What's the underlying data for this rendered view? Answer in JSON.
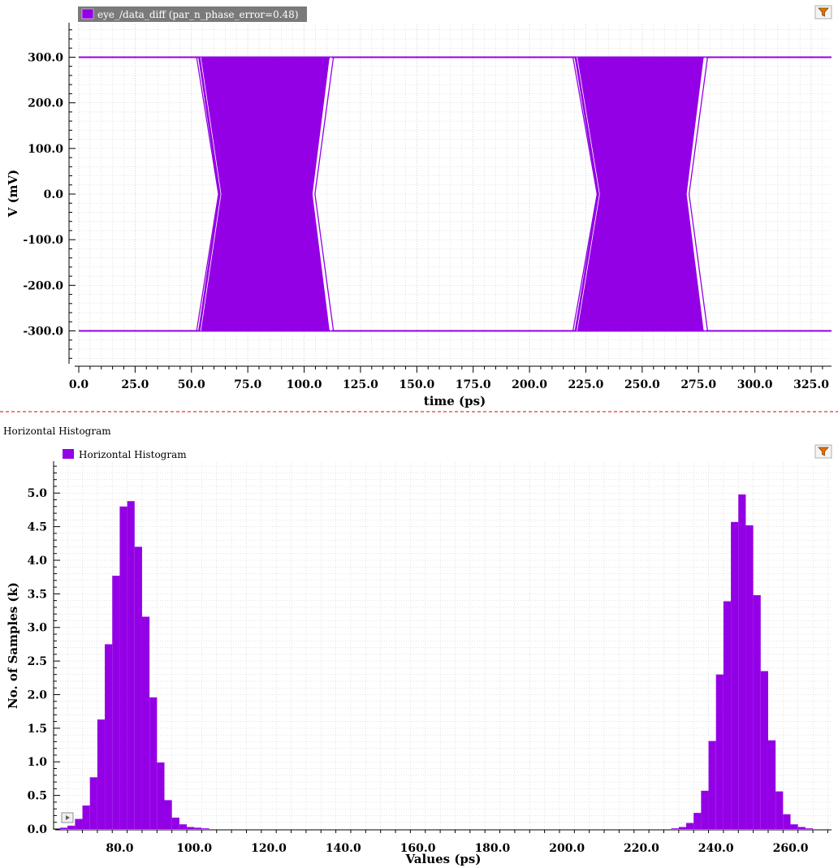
{
  "colors": {
    "trace": "#9400e6",
    "grid": "#c8c8c8",
    "divider": "#e00000",
    "legend_bg_top": "#7a7a7a",
    "filter_icon": "#e07000"
  },
  "icons": {
    "filter_top": "filter-icon",
    "filter_bottom": "filter-icon",
    "collapse": "play-icon"
  },
  "top_panel": {
    "legend": "eye_/data_diff (par_n_phase_error=0.48)"
  },
  "bottom_panel": {
    "section_title": "Horizontal Histogram",
    "legend": "Horizontal Histogram"
  },
  "chart_data": [
    {
      "type": "line",
      "name": "eye diagram",
      "title": "",
      "xlabel": "time (ps)",
      "ylabel": "V (mV)",
      "xlim": [
        0,
        334
      ],
      "ylim": [
        -372,
        372
      ],
      "xticks": [
        "0.0",
        "25.0",
        "50.0",
        "75.0",
        "100.0",
        "125.0",
        "150.0",
        "175.0",
        "200.0",
        "225.0",
        "250.0",
        "275.0",
        "300.0",
        "325.0"
      ],
      "yticks": [
        "300.0",
        "200.0",
        "100.0",
        "0.0",
        "-100.0",
        "-200.0",
        "-300.0"
      ],
      "high_level": 300,
      "low_level": -300,
      "crossings": [
        {
          "rise_start": 53,
          "cross": 62,
          "rise_end": 113,
          "fall_start": 103,
          "fall_end": 112
        },
        {
          "rise_start": 220,
          "cross": 230,
          "rise_end": 279,
          "fall_start": 269,
          "fall_end": 278
        }
      ],
      "legend": [
        "eye_/data_diff (par_n_phase_error=0.48)"
      ],
      "grid": true
    },
    {
      "type": "bar",
      "name": "horizontal histogram",
      "title": "Horizontal Histogram",
      "xlabel": "Values (ps)",
      "ylabel": "No. of Samples (k)",
      "xlim": [
        64,
        271
      ],
      "ylim": [
        0,
        5.45
      ],
      "xticks": [
        "80.0",
        "100.0",
        "120.0",
        "140.0",
        "160.0",
        "180.0",
        "200.0",
        "220.0",
        "240.0",
        "260.0"
      ],
      "yticks": [
        "5.0",
        "4.5",
        "4.0",
        "3.5",
        "3.0",
        "2.5",
        "2.0",
        "1.5",
        "1.0",
        "0.5",
        "0.0"
      ],
      "bin_width": 2,
      "x": [
        64,
        66,
        68,
        70,
        72,
        74,
        76,
        78,
        80,
        82,
        84,
        86,
        88,
        90,
        92,
        94,
        96,
        98,
        100,
        102,
        228,
        230,
        232,
        234,
        236,
        238,
        240,
        242,
        244,
        246,
        248,
        250,
        252,
        254,
        256,
        258,
        260,
        262,
        264,
        266,
        268
      ],
      "values": [
        0.02,
        0.05,
        0.15,
        0.35,
        0.77,
        1.63,
        2.75,
        3.77,
        4.8,
        4.88,
        4.2,
        3.16,
        1.96,
        0.99,
        0.43,
        0.17,
        0.07,
        0.03,
        0.02,
        0.01,
        0.01,
        0.03,
        0.09,
        0.24,
        0.57,
        1.31,
        2.3,
        3.39,
        4.57,
        4.98,
        4.52,
        3.48,
        2.35,
        1.32,
        0.56,
        0.22,
        0.07,
        0.03,
        0.01,
        0,
        0
      ],
      "legend": [
        "Horizontal Histogram"
      ],
      "grid": true
    }
  ]
}
